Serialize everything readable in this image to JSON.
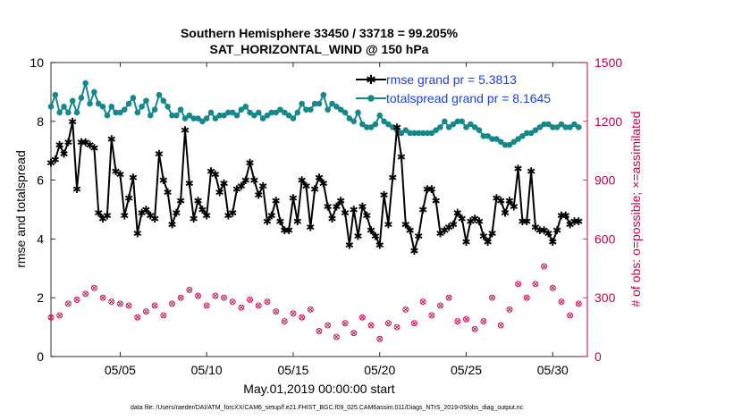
{
  "chart_data": {
    "type": "line",
    "title": "Southern Hemisphere 33450 / 33718 = 99.205%",
    "subtitle": "SAT_HORIZONTAL_WIND @ 150 hPa",
    "xlabel": "May.01,2019 00:00:00 start",
    "ylabel_left": "rmse and totalspread",
    "ylabel_right": "# of obs: o=possible; ×=assimilated",
    "footnote": "data file: /Users/raeder/DAI/ATM_forcXX/CAM6_setup/f.e21.FHIST_BGC.f09_025.CAM6assim.011/Diags_NTrS_2019-05/obs_diag_output.nc",
    "xlim": [
      1,
      32
    ],
    "ylim_left": [
      0,
      10
    ],
    "ylim_right": [
      0,
      1500
    ],
    "x_ticks": [
      5,
      10,
      15,
      20,
      25,
      30
    ],
    "x_tick_labels": [
      "05/05",
      "05/10",
      "05/15",
      "05/20",
      "05/25",
      "05/30"
    ],
    "y_left_ticks": [
      0,
      2,
      4,
      6,
      8,
      10
    ],
    "y_right_ticks": [
      0,
      300,
      600,
      900,
      1200,
      1500
    ],
    "colors": {
      "rmse": "#000000",
      "spread": "#14888a",
      "obs": "#c8004f",
      "legend_text": "#1f3fe0",
      "right_axis": "#c8004f"
    },
    "legend_placement": "top-right",
    "series": [
      {
        "name": "rmse grand pr = 5.3813",
        "key": "rmse",
        "marker": "star",
        "x": [
          1.0,
          1.25,
          1.5,
          1.75,
          2.0,
          2.25,
          2.5,
          2.75,
          3.0,
          3.25,
          3.5,
          3.75,
          4.0,
          4.25,
          4.5,
          4.75,
          5.0,
          5.25,
          5.5,
          5.75,
          6.0,
          6.25,
          6.5,
          6.75,
          7.0,
          7.25,
          7.5,
          7.75,
          8.0,
          8.25,
          8.5,
          8.75,
          9.0,
          9.25,
          9.5,
          9.75,
          10.0,
          10.25,
          10.5,
          10.75,
          11.0,
          11.25,
          11.5,
          11.75,
          12.0,
          12.25,
          12.5,
          12.75,
          13.0,
          13.25,
          13.5,
          13.75,
          14.0,
          14.25,
          14.5,
          14.75,
          15.0,
          15.25,
          15.5,
          15.75,
          16.0,
          16.25,
          16.5,
          16.75,
          17.0,
          17.25,
          17.5,
          17.75,
          18.0,
          18.25,
          18.5,
          18.75,
          19.0,
          19.25,
          19.5,
          19.75,
          20.0,
          20.25,
          20.5,
          20.75,
          21.0,
          21.25,
          21.5,
          21.75,
          22.0,
          22.25,
          22.5,
          22.75,
          23.0,
          23.25,
          23.5,
          23.75,
          24.0,
          24.25,
          24.5,
          24.75,
          25.0,
          25.25,
          25.5,
          25.75,
          26.0,
          26.25,
          26.5,
          26.75,
          27.0,
          27.25,
          27.5,
          27.75,
          28.0,
          28.25,
          28.5,
          28.75,
          29.0,
          29.25,
          29.5,
          29.75,
          30.0,
          30.25,
          30.5,
          30.75,
          31.0,
          31.25,
          31.5
        ],
        "values": [
          6.6,
          6.7,
          7.2,
          6.9,
          7.3,
          8.0,
          5.7,
          7.3,
          7.3,
          7.2,
          7.1,
          4.9,
          4.7,
          4.8,
          7.4,
          6.3,
          6.2,
          4.8,
          5.4,
          6.1,
          4.2,
          4.9,
          5.0,
          4.8,
          4.7,
          6.9,
          6.0,
          5.6,
          4.5,
          4.9,
          5.3,
          7.7,
          5.9,
          4.7,
          5.3,
          5.0,
          4.8,
          6.3,
          6.2,
          5.6,
          5.9,
          4.8,
          4.9,
          5.7,
          5.8,
          6.0,
          6.6,
          6.0,
          5.5,
          5.8,
          4.6,
          4.8,
          5.3,
          4.6,
          4.3,
          4.3,
          5.4,
          4.6,
          6.0,
          5.8,
          4.4,
          5.7,
          6.1,
          5.9,
          5.1,
          4.7,
          5.1,
          5.3,
          4.9,
          3.8,
          5.0,
          4.1,
          5.1,
          4.8,
          4.3,
          4.1,
          3.8,
          5.5,
          4.5,
          6.1,
          7.8,
          6.8,
          4.5,
          4.3,
          3.6,
          4.1,
          5.0,
          5.7,
          5.7,
          5.3,
          4.2,
          4.3,
          4.4,
          4.5,
          4.9,
          4.7,
          3.9,
          4.6,
          4.7,
          4.6,
          4.1,
          3.9,
          4.2,
          5.4,
          5.3,
          4.9,
          5.3,
          5.1,
          6.4,
          4.6,
          4.6,
          6.3,
          4.4,
          4.3,
          4.3,
          4.2,
          3.9,
          4.3,
          4.8,
          4.8,
          4.5,
          4.6,
          4.6
        ],
        "note": "See chart for full dense series"
      },
      {
        "name": "totalspread grand pr = 8.1645",
        "key": "spread",
        "marker": "dot",
        "x": [
          1.0,
          1.25,
          1.5,
          1.75,
          2.0,
          2.25,
          2.5,
          2.75,
          3.0,
          3.25,
          3.5,
          3.75,
          4.0,
          4.25,
          4.5,
          4.75,
          5.0,
          5.25,
          5.5,
          5.75,
          6.0,
          6.25,
          6.5,
          6.75,
          7.0,
          7.25,
          7.5,
          7.75,
          8.0,
          8.25,
          8.5,
          8.75,
          9.0,
          9.25,
          9.5,
          9.75,
          10.0,
          10.25,
          10.5,
          10.75,
          11.0,
          11.25,
          11.5,
          11.75,
          12.0,
          12.25,
          12.5,
          12.75,
          13.0,
          13.25,
          13.5,
          13.75,
          14.0,
          14.25,
          14.5,
          14.75,
          15.0,
          15.25,
          15.5,
          15.75,
          16.0,
          16.25,
          16.5,
          16.75,
          17.0,
          17.25,
          17.5,
          17.75,
          18.0,
          18.25,
          18.5,
          18.75,
          19.0,
          19.25,
          19.5,
          19.75,
          20.0,
          20.25,
          20.5,
          20.75,
          21.0,
          21.25,
          21.5,
          21.75,
          22.0,
          22.25,
          22.5,
          22.75,
          23.0,
          23.25,
          23.5,
          23.75,
          24.0,
          24.25,
          24.5,
          24.75,
          25.0,
          25.25,
          25.5,
          25.75,
          26.0,
          26.25,
          26.5,
          26.75,
          27.0,
          27.25,
          27.5,
          27.75,
          28.0,
          28.25,
          28.5,
          28.75,
          29.0,
          29.25,
          29.5,
          29.75,
          30.0,
          30.25,
          30.5,
          30.75,
          31.0,
          31.25,
          31.5
        ],
        "values": [
          8.5,
          8.9,
          8.3,
          8.5,
          8.3,
          8.7,
          8.3,
          8.8,
          9.3,
          8.6,
          9.0,
          8.6,
          8.5,
          8.2,
          8.5,
          8.3,
          8.3,
          8.4,
          8.6,
          8.8,
          8.3,
          8.5,
          8.7,
          8.2,
          8.4,
          8.9,
          8.7,
          8.5,
          8.2,
          8.2,
          8.4,
          8.1,
          8.2,
          8.1,
          8.1,
          8.0,
          8.1,
          8.3,
          8.1,
          8.2,
          8.2,
          8.3,
          8.3,
          8.2,
          8.4,
          8.5,
          8.3,
          8.2,
          8.3,
          8.1,
          8.2,
          8.3,
          8.3,
          8.4,
          8.3,
          8.2,
          8.1,
          8.3,
          8.6,
          8.4,
          8.4,
          8.6,
          8.6,
          8.9,
          8.4,
          8.6,
          8.5,
          8.4,
          8.3,
          8.1,
          8.0,
          8.3,
          7.9,
          7.8,
          7.8,
          7.9,
          8.2,
          8.0,
          7.9,
          7.8,
          7.7,
          7.6,
          7.7,
          7.6,
          7.6,
          7.6,
          7.6,
          7.6,
          7.6,
          7.7,
          7.8,
          8.0,
          7.8,
          7.9,
          8.0,
          8.0,
          7.8,
          7.9,
          7.8,
          7.7,
          7.5,
          7.5,
          7.4,
          7.4,
          7.3,
          7.2,
          7.2,
          7.3,
          7.4,
          7.5,
          7.6,
          7.6,
          7.7,
          7.8,
          7.9,
          7.9,
          7.8,
          7.8,
          7.9,
          7.8,
          7.8,
          7.9,
          7.8
        ],
        "note": "See chart for full dense series"
      },
      {
        "name": "obs",
        "key": "obs",
        "marker": "circle-x",
        "axis": "right",
        "x": [
          1.0,
          1.5,
          2.0,
          2.5,
          3.0,
          3.5,
          4.0,
          4.5,
          5.0,
          5.5,
          6.0,
          6.5,
          7.0,
          7.5,
          8.0,
          8.5,
          9.0,
          9.5,
          10.0,
          10.5,
          11.0,
          11.5,
          12.0,
          12.5,
          13.0,
          13.5,
          14.0,
          14.5,
          15.0,
          15.5,
          16.0,
          16.5,
          17.0,
          17.5,
          18.0,
          18.5,
          19.0,
          19.5,
          20.0,
          20.5,
          21.0,
          21.5,
          22.0,
          22.5,
          23.0,
          23.5,
          24.0,
          24.5,
          25.0,
          25.5,
          26.0,
          26.5,
          27.0,
          27.5,
          28.0,
          28.5,
          29.0,
          29.5,
          30.0,
          30.5,
          31.0,
          31.5
        ],
        "values": [
          200,
          210,
          270,
          290,
          320,
          350,
          300,
          280,
          270,
          260,
          200,
          230,
          260,
          210,
          270,
          300,
          340,
          310,
          260,
          310,
          300,
          280,
          250,
          290,
          260,
          280,
          230,
          180,
          220,
          200,
          240,
          130,
          160,
          100,
          170,
          120,
          200,
          160,
          90,
          170,
          150,
          240,
          170,
          280,
          210,
          260,
          300,
          180,
          190,
          140,
          180,
          300,
          160,
          240,
          370,
          300,
          370,
          460,
          350,
          280,
          210,
          270
        ]
      }
    ]
  }
}
